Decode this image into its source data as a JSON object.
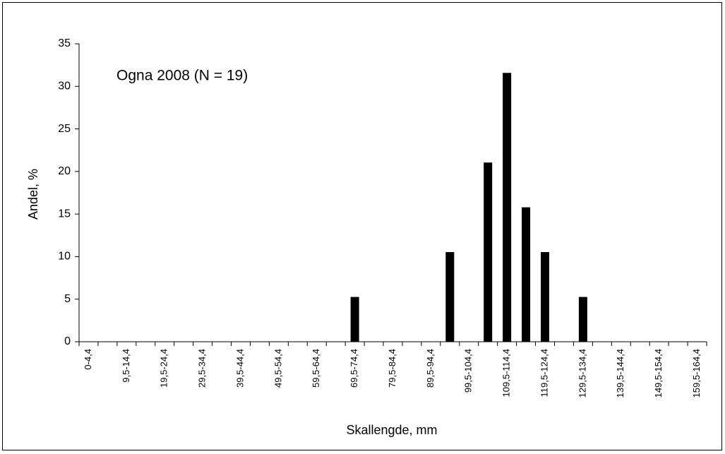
{
  "chart_data": {
    "type": "bar",
    "annotation": "Ogna 2008 (N = 19)",
    "x_label": "Skallengde, mm",
    "y_label": "Andel, %",
    "categories": [
      "0-4,4",
      null,
      "9,5-14,4",
      null,
      "19,5-24,4",
      null,
      "29,5-34,4",
      null,
      "39,5-44,4",
      null,
      "49,5-54,4",
      null,
      "59,5-64,4",
      null,
      "69,5-74,4",
      null,
      "79,5-84,4",
      null,
      "89,5-94,4",
      null,
      "99,5-104,4",
      null,
      "109,5-114,4",
      null,
      "119,5-124,4",
      null,
      "129,5-134,4",
      null,
      "139,5-144,4",
      null,
      "149,5-154,4",
      null,
      "159,5-164,4"
    ],
    "values": [
      0,
      0,
      0,
      0,
      0,
      0,
      0,
      0,
      0,
      0,
      0,
      0,
      0,
      0,
      5.26,
      0,
      0,
      0,
      0,
      10.53,
      0,
      21.05,
      31.58,
      15.79,
      10.53,
      0,
      5.26,
      0,
      0,
      0,
      0,
      0,
      0
    ],
    "color": "#000000",
    "ylim": [
      0,
      35
    ],
    "yticks": [
      0,
      5,
      10,
      15,
      20,
      25,
      30,
      35
    ]
  }
}
